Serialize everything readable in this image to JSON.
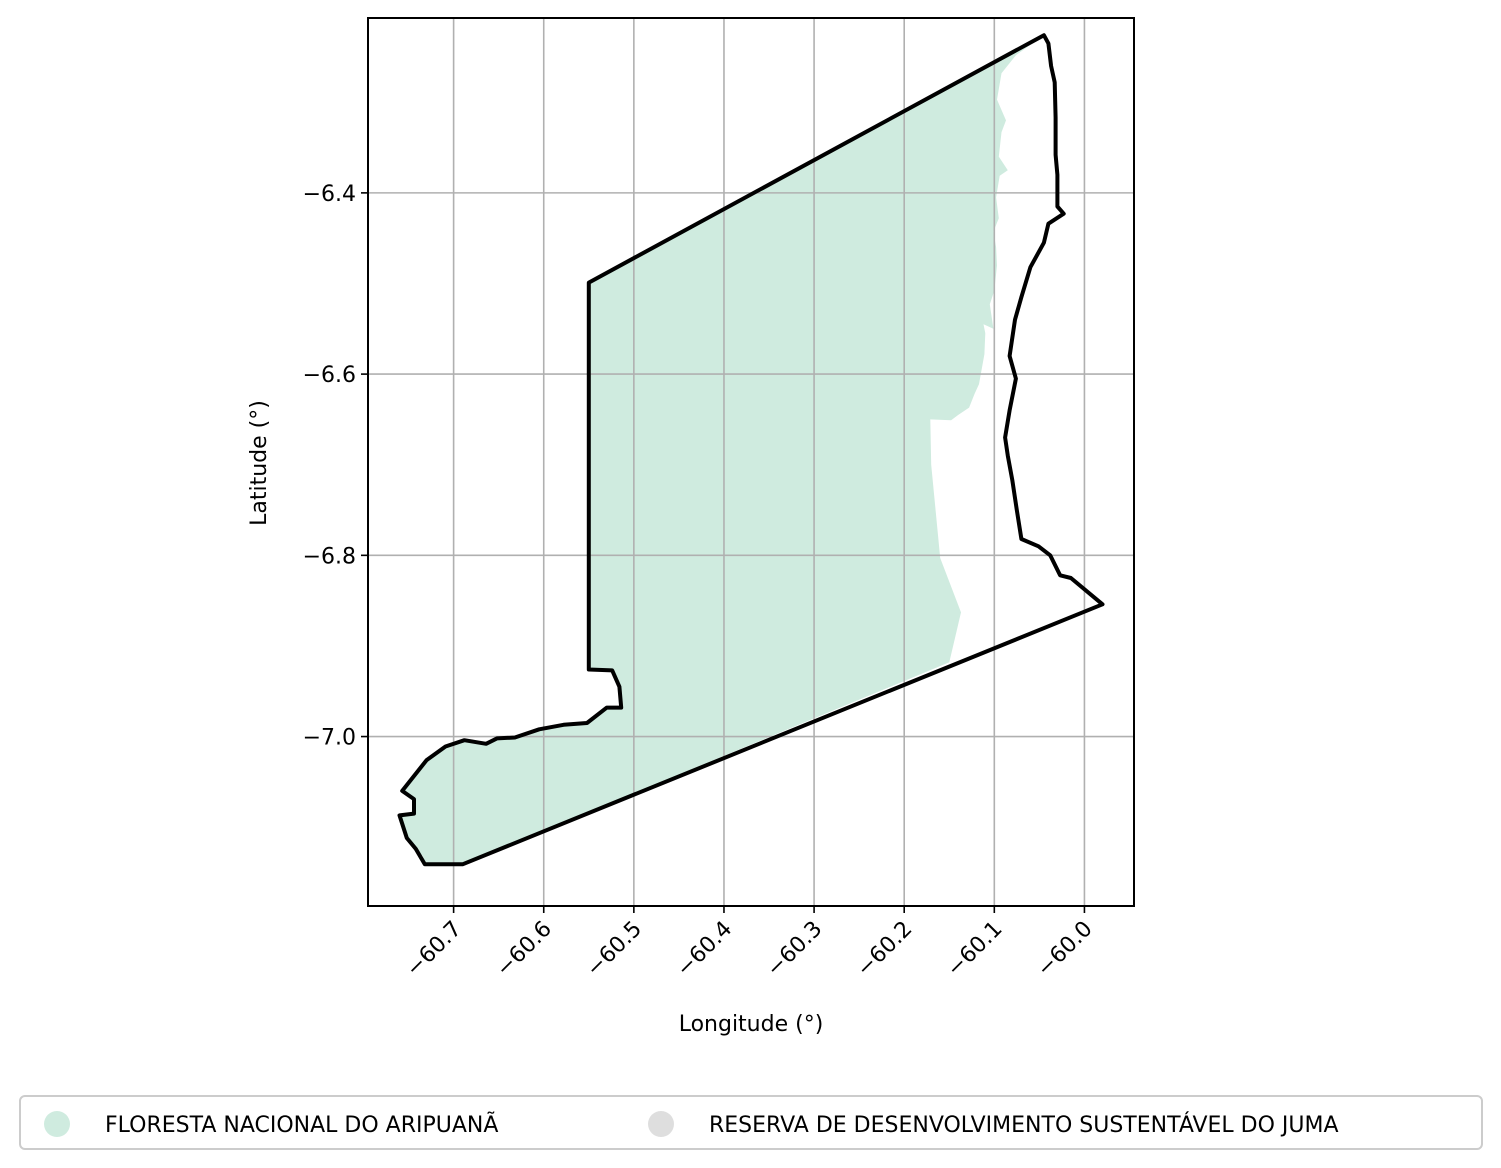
{
  "chart_data": {
    "type": "map",
    "xlabel": "Longitude (°)",
    "ylabel": "Latitude (°)",
    "xlim": [
      -60.795,
      -59.945
    ],
    "ylim": [
      -7.187,
      -6.207
    ],
    "x_ticks": [
      -60.7,
      -60.6,
      -60.5,
      -60.4,
      -60.3,
      -60.2,
      -60.1,
      -60.0
    ],
    "x_tick_labels": [
      "−60.7",
      "−60.6",
      "−60.5",
      "−60.4",
      "−60.3",
      "−60.2",
      "−60.1",
      "−60.0"
    ],
    "y_ticks": [
      -6.4,
      -6.6,
      -6.8,
      -7.0
    ],
    "y_tick_labels": [
      "−6.4",
      "−6.6",
      "−6.8",
      "−7.0"
    ],
    "grid": true,
    "legend_position": "bottom",
    "series": [
      {
        "name": "FLORESTA NACIONAL DO ARIPUANÃ",
        "color": "#cfebdf",
        "polygon": [
          [
            -60.732,
            -7.141
          ],
          [
            -60.698,
            -7.142
          ],
          [
            -60.69,
            -7.141
          ],
          [
            -60.15,
            -6.918
          ],
          [
            -60.137,
            -6.863
          ],
          [
            -60.16,
            -6.803
          ],
          [
            -60.17,
            -6.7
          ],
          [
            -60.171,
            -6.65
          ],
          [
            -60.148,
            -6.651
          ],
          [
            -60.14,
            -6.645
          ],
          [
            -60.128,
            -6.637
          ],
          [
            -60.122,
            -6.622
          ],
          [
            -60.117,
            -6.611
          ],
          [
            -60.111,
            -6.578
          ],
          [
            -60.11,
            -6.555
          ],
          [
            -60.112,
            -6.545
          ],
          [
            -60.101,
            -6.55
          ],
          [
            -60.105,
            -6.523
          ],
          [
            -60.1,
            -6.508
          ],
          [
            -60.097,
            -6.48
          ],
          [
            -60.098,
            -6.46
          ],
          [
            -60.101,
            -6.443
          ],
          [
            -60.095,
            -6.428
          ],
          [
            -60.098,
            -6.405
          ],
          [
            -60.094,
            -6.381
          ],
          [
            -60.085,
            -6.375
          ],
          [
            -60.095,
            -6.36
          ],
          [
            -60.092,
            -6.333
          ],
          [
            -60.087,
            -6.32
          ],
          [
            -60.097,
            -6.297
          ],
          [
            -60.092,
            -6.268
          ],
          [
            -60.076,
            -6.248
          ],
          [
            -60.045,
            -6.226
          ],
          [
            -60.55,
            -6.499
          ],
          [
            -60.55,
            -6.926
          ],
          [
            -60.524,
            -6.927
          ],
          [
            -60.516,
            -6.945
          ],
          [
            -60.514,
            -6.968
          ],
          [
            -60.53,
            -6.968
          ],
          [
            -60.552,
            -6.985
          ],
          [
            -60.578,
            -6.987
          ],
          [
            -60.605,
            -6.992
          ],
          [
            -60.632,
            -7.001
          ],
          [
            -60.652,
            -7.002
          ],
          [
            -60.664,
            -7.008
          ],
          [
            -60.688,
            -7.004
          ],
          [
            -60.709,
            -7.011
          ],
          [
            -60.73,
            -7.026
          ],
          [
            -60.757,
            -7.06
          ],
          [
            -60.744,
            -7.069
          ],
          [
            -60.744,
            -7.085
          ],
          [
            -60.76,
            -7.087
          ],
          [
            -60.752,
            -7.112
          ],
          [
            -60.742,
            -7.124
          ],
          [
            -60.734,
            -7.132
          ]
        ]
      },
      {
        "name": "RESERVA DE DESENVOLVIMENTO SUSTENTÁVEL DO JUMA",
        "color": "#dedede",
        "polygon": []
      }
    ],
    "outline": {
      "color": "#000000",
      "polygon": [
        [
          -60.045,
          -6.226
        ],
        [
          -60.04,
          -6.235
        ],
        [
          -60.037,
          -6.26
        ],
        [
          -60.033,
          -6.278
        ],
        [
          -60.032,
          -6.317
        ],
        [
          -60.032,
          -6.358
        ],
        [
          -60.03,
          -6.38
        ],
        [
          -60.03,
          -6.415
        ],
        [
          -60.023,
          -6.423
        ],
        [
          -60.04,
          -6.434
        ],
        [
          -60.045,
          -6.455
        ],
        [
          -60.06,
          -6.482
        ],
        [
          -60.07,
          -6.515
        ],
        [
          -60.077,
          -6.54
        ],
        [
          -60.083,
          -6.58
        ],
        [
          -60.076,
          -6.605
        ],
        [
          -60.083,
          -6.64
        ],
        [
          -60.088,
          -6.67
        ],
        [
          -60.085,
          -6.69
        ],
        [
          -60.08,
          -6.717
        ],
        [
          -60.075,
          -6.75
        ],
        [
          -60.07,
          -6.782
        ],
        [
          -60.051,
          -6.79
        ],
        [
          -60.038,
          -6.8
        ],
        [
          -60.027,
          -6.822
        ],
        [
          -60.015,
          -6.825
        ],
        [
          -59.98,
          -6.854
        ],
        [
          -60.69,
          -7.141
        ],
        [
          -60.732,
          -7.141
        ],
        [
          -60.742,
          -7.124
        ],
        [
          -60.752,
          -7.112
        ],
        [
          -60.76,
          -7.087
        ],
        [
          -60.744,
          -7.085
        ],
        [
          -60.744,
          -7.069
        ],
        [
          -60.757,
          -7.06
        ],
        [
          -60.73,
          -7.026
        ],
        [
          -60.709,
          -7.011
        ],
        [
          -60.688,
          -7.004
        ],
        [
          -60.664,
          -7.008
        ],
        [
          -60.652,
          -7.002
        ],
        [
          -60.632,
          -7.001
        ],
        [
          -60.605,
          -6.992
        ],
        [
          -60.578,
          -6.987
        ],
        [
          -60.552,
          -6.985
        ],
        [
          -60.53,
          -6.968
        ],
        [
          -60.514,
          -6.968
        ],
        [
          -60.516,
          -6.945
        ],
        [
          -60.524,
          -6.927
        ],
        [
          -60.55,
          -6.926
        ],
        [
          -60.55,
          -6.499
        ]
      ]
    }
  }
}
